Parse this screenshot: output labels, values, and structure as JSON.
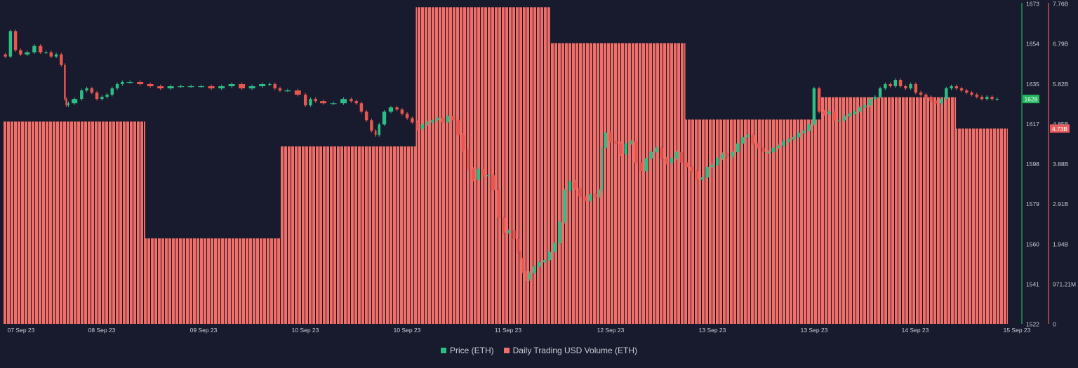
{
  "colors": {
    "background": "#171b2d",
    "price_up": "#2dbd85",
    "price_down": "#e8574f",
    "price_axis": "#20b25a",
    "volume_fill": "#ef6f6c",
    "volume_stripe": "#1d1416",
    "volume_axis": "#e85d5d",
    "text": "#c9ccd6"
  },
  "legend": {
    "price": "Price (ETH)",
    "volume": "Daily Trading USD Volume (ETH)"
  },
  "chart_data": {
    "type": "candlestick+bar",
    "x_ticks": [
      "07 Sep 23",
      "08 Sep 23",
      "09 Sep 23",
      "10 Sep 23",
      "10 Sep 23",
      "11 Sep 23",
      "12 Sep 23",
      "13 Sep 23",
      "13 Sep 23",
      "14 Sep 23",
      "15 Sep 23"
    ],
    "price_axis": {
      "ticks": [
        "1673",
        "1654",
        "1635",
        "1617",
        "1598",
        "1579",
        "1560",
        "1541",
        "1522"
      ],
      "ylim": [
        1522,
        1673
      ],
      "current_label": "1628"
    },
    "volume_axis": {
      "ticks": [
        "7.76B",
        "6.79B",
        "5.82B",
        "4.85B",
        "3.88B",
        "2.91B",
        "1.94B",
        "971.21M",
        "0"
      ],
      "ylim": [
        0,
        7.76
      ],
      "unit": "B",
      "current_label": "4.73B"
    },
    "volume_series": {
      "name": "Daily Trading USD Volume (ETH)",
      "periods": [
        {
          "start": 0.0,
          "end": 1.4,
          "value": 4.9
        },
        {
          "start": 1.4,
          "end": 2.73,
          "value": 2.07
        },
        {
          "start": 2.73,
          "end": 4.06,
          "value": 4.3
        },
        {
          "start": 4.06,
          "end": 5.38,
          "value": 7.67
        },
        {
          "start": 5.38,
          "end": 6.71,
          "value": 6.8
        },
        {
          "start": 6.71,
          "end": 8.04,
          "value": 4.95
        },
        {
          "start": 8.04,
          "end": 9.37,
          "value": 5.49
        },
        {
          "start": 9.37,
          "end": 9.88,
          "value": 4.73
        }
      ]
    },
    "price_series": {
      "name": "Price (ETH)",
      "points": [
        [
          0.0,
          1649
        ],
        [
          0.05,
          1648
        ],
        [
          0.1,
          1660
        ],
        [
          0.15,
          1651
        ],
        [
          0.2,
          1649
        ],
        [
          0.28,
          1650
        ],
        [
          0.34,
          1653
        ],
        [
          0.4,
          1650
        ],
        [
          0.45,
          1650
        ],
        [
          0.5,
          1648
        ],
        [
          0.55,
          1649
        ],
        [
          0.6,
          1644
        ],
        [
          0.62,
          1628
        ],
        [
          0.63,
          1625
        ],
        [
          0.66,
          1626
        ],
        [
          0.75,
          1628
        ],
        [
          0.8,
          1632
        ],
        [
          0.85,
          1633
        ],
        [
          0.9,
          1631
        ],
        [
          0.95,
          1628
        ],
        [
          1.0,
          1629
        ],
        [
          1.05,
          1630
        ],
        [
          1.1,
          1633
        ],
        [
          1.15,
          1635
        ],
        [
          1.2,
          1636
        ],
        [
          1.3,
          1636
        ],
        [
          1.4,
          1635
        ],
        [
          1.5,
          1634
        ],
        [
          1.6,
          1633
        ],
        [
          1.7,
          1634
        ],
        [
          1.8,
          1634
        ],
        [
          1.9,
          1634
        ],
        [
          2.0,
          1634
        ],
        [
          2.1,
          1633
        ],
        [
          2.2,
          1634
        ],
        [
          2.3,
          1635
        ],
        [
          2.4,
          1633
        ],
        [
          2.5,
          1634
        ],
        [
          2.6,
          1635
        ],
        [
          2.65,
          1635
        ],
        [
          2.7,
          1633
        ],
        [
          2.75,
          1632
        ],
        [
          2.85,
          1632
        ],
        [
          2.95,
          1630
        ],
        [
          3.0,
          1625
        ],
        [
          3.05,
          1628
        ],
        [
          3.1,
          1627
        ],
        [
          3.2,
          1626
        ],
        [
          3.3,
          1626
        ],
        [
          3.4,
          1628
        ],
        [
          3.45,
          1627
        ],
        [
          3.5,
          1626
        ],
        [
          3.55,
          1622
        ],
        [
          3.6,
          1618
        ],
        [
          3.65,
          1613
        ],
        [
          3.68,
          1611
        ],
        [
          3.72,
          1616
        ],
        [
          3.78,
          1622
        ],
        [
          3.85,
          1624
        ],
        [
          3.9,
          1623
        ],
        [
          3.95,
          1621
        ],
        [
          4.0,
          1619
        ],
        [
          4.05,
          1617
        ],
        [
          4.1,
          1614
        ],
        [
          4.15,
          1616
        ],
        [
          4.2,
          1617
        ],
        [
          4.25,
          1618
        ],
        [
          4.3,
          1619
        ],
        [
          4.35,
          1617
        ],
        [
          4.4,
          1620
        ],
        [
          4.45,
          1618
        ],
        [
          4.5,
          1611
        ],
        [
          4.55,
          1604
        ],
        [
          4.6,
          1595
        ],
        [
          4.65,
          1590
        ],
        [
          4.7,
          1595
        ],
        [
          4.75,
          1592
        ],
        [
          4.8,
          1592
        ],
        [
          4.85,
          1585
        ],
        [
          4.9,
          1572
        ],
        [
          4.95,
          1565
        ],
        [
          5.0,
          1566
        ],
        [
          5.05,
          1562
        ],
        [
          5.08,
          1556
        ],
        [
          5.1,
          1553
        ],
        [
          5.13,
          1546
        ],
        [
          5.16,
          1543
        ],
        [
          5.2,
          1546
        ],
        [
          5.25,
          1549
        ],
        [
          5.3,
          1551
        ],
        [
          5.35,
          1552
        ],
        [
          5.4,
          1556
        ],
        [
          5.45,
          1560
        ],
        [
          5.5,
          1570
        ],
        [
          5.55,
          1585
        ],
        [
          5.6,
          1589
        ],
        [
          5.65,
          1586
        ],
        [
          5.7,
          1582
        ],
        [
          5.75,
          1580
        ],
        [
          5.8,
          1583
        ],
        [
          5.85,
          1582
        ],
        [
          5.88,
          1585
        ],
        [
          5.9,
          1605
        ],
        [
          5.95,
          1612
        ],
        [
          6.0,
          1608
        ],
        [
          6.05,
          1607
        ],
        [
          6.1,
          1602
        ],
        [
          6.15,
          1607
        ],
        [
          6.2,
          1608
        ],
        [
          6.25,
          1598
        ],
        [
          6.3,
          1594
        ],
        [
          6.35,
          1600
        ],
        [
          6.4,
          1603
        ],
        [
          6.45,
          1605
        ],
        [
          6.5,
          1600
        ],
        [
          6.55,
          1598
        ],
        [
          6.6,
          1600
        ],
        [
          6.65,
          1603
        ],
        [
          6.7,
          1598
        ],
        [
          6.75,
          1596
        ],
        [
          6.8,
          1594
        ],
        [
          6.85,
          1590
        ],
        [
          6.9,
          1591
        ],
        [
          6.95,
          1596
        ],
        [
          7.0,
          1597
        ],
        [
          7.05,
          1600
        ],
        [
          7.1,
          1602
        ],
        [
          7.15,
          1601
        ],
        [
          7.2,
          1603
        ],
        [
          7.25,
          1607
        ],
        [
          7.3,
          1610
        ],
        [
          7.35,
          1611
        ],
        [
          7.4,
          1607
        ],
        [
          7.45,
          1605
        ],
        [
          7.5,
          1603
        ],
        [
          7.55,
          1603
        ],
        [
          7.6,
          1605
        ],
        [
          7.65,
          1606
        ],
        [
          7.7,
          1608
        ],
        [
          7.75,
          1609
        ],
        [
          7.8,
          1610
        ],
        [
          7.85,
          1612
        ],
        [
          7.9,
          1613
        ],
        [
          7.95,
          1616
        ],
        [
          8.0,
          1633
        ],
        [
          8.05,
          1622
        ],
        [
          8.1,
          1621
        ],
        [
          8.15,
          1622
        ],
        [
          8.2,
          1618
        ],
        [
          8.25,
          1618
        ],
        [
          8.3,
          1620
        ],
        [
          8.35,
          1621
        ],
        [
          8.4,
          1622
        ],
        [
          8.45,
          1624
        ],
        [
          8.5,
          1625
        ],
        [
          8.55,
          1628
        ],
        [
          8.6,
          1629
        ],
        [
          8.65,
          1633
        ],
        [
          8.7,
          1635
        ],
        [
          8.75,
          1634
        ],
        [
          8.8,
          1637
        ],
        [
          8.85,
          1634
        ],
        [
          8.9,
          1633
        ],
        [
          8.95,
          1635
        ],
        [
          9.0,
          1631
        ],
        [
          9.05,
          1630
        ],
        [
          9.1,
          1629
        ],
        [
          9.15,
          1627
        ],
        [
          9.2,
          1626
        ],
        [
          9.25,
          1628
        ],
        [
          9.3,
          1633
        ],
        [
          9.35,
          1634
        ],
        [
          9.4,
          1633
        ],
        [
          9.45,
          1632
        ],
        [
          9.5,
          1631
        ],
        [
          9.55,
          1630
        ],
        [
          9.6,
          1629
        ],
        [
          9.65,
          1628
        ],
        [
          9.7,
          1629
        ],
        [
          9.75,
          1628
        ],
        [
          9.8,
          1628
        ]
      ]
    }
  }
}
